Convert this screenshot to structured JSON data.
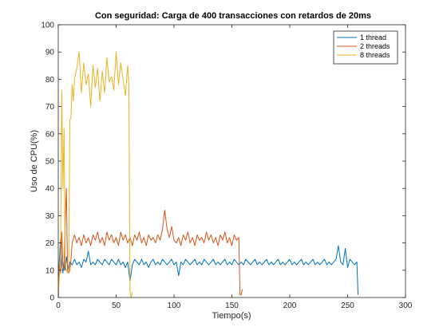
{
  "chart_data": {
    "type": "line",
    "title": "Con seguridad: Carga de 400 transacciones con retardos de 20ms",
    "xlabel": "Tiempo(s)",
    "ylabel": "Uso de CPU(%)",
    "xlim": [
      0,
      300
    ],
    "ylim": [
      0,
      100
    ],
    "xticks": [
      0,
      50,
      100,
      150,
      200,
      250,
      300
    ],
    "yticks": [
      0,
      10,
      20,
      30,
      40,
      50,
      60,
      70,
      80,
      90,
      100
    ],
    "grid": false,
    "legend_position": "top-right",
    "series": [
      {
        "name": "1 thread",
        "color": "#0072BD",
        "points": [
          [
            0,
            8
          ],
          [
            1,
            14
          ],
          [
            2,
            22
          ],
          [
            3,
            12
          ],
          [
            4,
            9
          ],
          [
            5,
            13
          ],
          [
            6,
            10
          ],
          [
            7,
            15
          ],
          [
            8,
            12
          ],
          [
            9,
            10
          ],
          [
            10,
            13
          ],
          [
            12,
            12
          ],
          [
            14,
            14
          ],
          [
            16,
            12
          ],
          [
            18,
            13
          ],
          [
            20,
            11
          ],
          [
            22,
            14
          ],
          [
            24,
            13
          ],
          [
            26,
            17
          ],
          [
            28,
            12
          ],
          [
            30,
            13
          ],
          [
            32,
            12
          ],
          [
            34,
            14
          ],
          [
            36,
            13
          ],
          [
            38,
            12
          ],
          [
            40,
            14
          ],
          [
            42,
            13
          ],
          [
            44,
            12
          ],
          [
            46,
            14
          ],
          [
            48,
            13
          ],
          [
            50,
            12
          ],
          [
            52,
            14
          ],
          [
            54,
            12
          ],
          [
            56,
            13
          ],
          [
            58,
            11
          ],
          [
            60,
            13
          ],
          [
            62,
            6
          ],
          [
            64,
            12
          ],
          [
            66,
            14
          ],
          [
            68,
            13
          ],
          [
            70,
            12
          ],
          [
            72,
            14
          ],
          [
            74,
            12
          ],
          [
            76,
            13
          ],
          [
            78,
            11
          ],
          [
            80,
            13
          ],
          [
            82,
            14
          ],
          [
            84,
            12
          ],
          [
            86,
            13
          ],
          [
            88,
            12
          ],
          [
            90,
            14
          ],
          [
            92,
            13
          ],
          [
            94,
            12
          ],
          [
            96,
            13
          ],
          [
            98,
            14
          ],
          [
            100,
            12
          ],
          [
            102,
            13
          ],
          [
            104,
            8
          ],
          [
            106,
            13
          ],
          [
            108,
            12
          ],
          [
            110,
            14
          ],
          [
            112,
            13
          ],
          [
            114,
            12
          ],
          [
            116,
            13
          ],
          [
            118,
            14
          ],
          [
            120,
            12
          ],
          [
            122,
            13
          ],
          [
            124,
            12
          ],
          [
            126,
            14
          ],
          [
            128,
            13
          ],
          [
            130,
            12
          ],
          [
            132,
            13
          ],
          [
            134,
            14
          ],
          [
            136,
            12
          ],
          [
            138,
            13
          ],
          [
            140,
            12
          ],
          [
            142,
            13
          ],
          [
            144,
            14
          ],
          [
            146,
            12
          ],
          [
            148,
            13
          ],
          [
            150,
            12
          ],
          [
            152,
            14
          ],
          [
            154,
            13
          ],
          [
            156,
            12
          ],
          [
            158,
            13
          ],
          [
            160,
            12
          ],
          [
            162,
            14
          ],
          [
            164,
            13
          ],
          [
            166,
            12
          ],
          [
            168,
            13
          ],
          [
            170,
            14
          ],
          [
            172,
            12
          ],
          [
            174,
            13
          ],
          [
            176,
            12
          ],
          [
            178,
            13
          ],
          [
            180,
            14
          ],
          [
            182,
            12
          ],
          [
            184,
            13
          ],
          [
            186,
            12
          ],
          [
            188,
            13
          ],
          [
            190,
            14
          ],
          [
            192,
            12
          ],
          [
            194,
            13
          ],
          [
            196,
            12
          ],
          [
            198,
            13
          ],
          [
            200,
            14
          ],
          [
            202,
            12
          ],
          [
            204,
            13
          ],
          [
            206,
            12
          ],
          [
            208,
            13
          ],
          [
            210,
            14
          ],
          [
            212,
            12
          ],
          [
            214,
            13
          ],
          [
            216,
            12
          ],
          [
            218,
            13
          ],
          [
            220,
            14
          ],
          [
            222,
            12
          ],
          [
            224,
            13
          ],
          [
            226,
            12
          ],
          [
            228,
            13
          ],
          [
            230,
            14
          ],
          [
            232,
            12
          ],
          [
            234,
            13
          ],
          [
            236,
            12
          ],
          [
            238,
            13
          ],
          [
            240,
            14
          ],
          [
            242,
            19
          ],
          [
            244,
            13
          ],
          [
            246,
            12
          ],
          [
            248,
            18
          ],
          [
            250,
            11
          ],
          [
            252,
            14
          ],
          [
            254,
            13
          ],
          [
            256,
            12
          ],
          [
            258,
            13
          ],
          [
            259,
            1
          ]
        ]
      },
      {
        "name": "2 threads",
        "color": "#D95319",
        "points": [
          [
            0,
            0
          ],
          [
            1,
            12
          ],
          [
            2,
            9
          ],
          [
            3,
            24
          ],
          [
            4,
            12
          ],
          [
            5,
            10
          ],
          [
            6,
            28
          ],
          [
            7,
            40
          ],
          [
            8,
            10
          ],
          [
            9,
            9
          ],
          [
            10,
            10
          ],
          [
            11,
            14
          ],
          [
            12,
            20
          ],
          [
            14,
            23
          ],
          [
            16,
            20
          ],
          [
            18,
            22
          ],
          [
            20,
            19
          ],
          [
            22,
            23
          ],
          [
            24,
            20
          ],
          [
            26,
            22
          ],
          [
            28,
            19
          ],
          [
            30,
            23
          ],
          [
            32,
            21
          ],
          [
            34,
            24
          ],
          [
            36,
            20
          ],
          [
            38,
            22
          ],
          [
            40,
            19
          ],
          [
            42,
            24
          ],
          [
            44,
            21
          ],
          [
            46,
            23
          ],
          [
            48,
            20
          ],
          [
            50,
            22
          ],
          [
            52,
            19
          ],
          [
            54,
            24
          ],
          [
            56,
            21
          ],
          [
            58,
            23
          ],
          [
            60,
            20
          ],
          [
            62,
            22
          ],
          [
            64,
            19
          ],
          [
            66,
            23
          ],
          [
            68,
            21
          ],
          [
            70,
            24
          ],
          [
            72,
            20
          ],
          [
            74,
            22
          ],
          [
            76,
            19
          ],
          [
            78,
            23
          ],
          [
            80,
            21
          ],
          [
            82,
            22
          ],
          [
            84,
            20
          ],
          [
            86,
            23
          ],
          [
            88,
            21
          ],
          [
            90,
            25
          ],
          [
            92,
            32
          ],
          [
            94,
            25
          ],
          [
            96,
            22
          ],
          [
            98,
            26
          ],
          [
            100,
            21
          ],
          [
            102,
            20
          ],
          [
            104,
            22
          ],
          [
            106,
            19
          ],
          [
            108,
            23
          ],
          [
            110,
            21
          ],
          [
            112,
            24
          ],
          [
            114,
            20
          ],
          [
            116,
            22
          ],
          [
            118,
            19
          ],
          [
            120,
            23
          ],
          [
            122,
            21
          ],
          [
            124,
            22
          ],
          [
            126,
            20
          ],
          [
            128,
            24
          ],
          [
            130,
            21
          ],
          [
            132,
            23
          ],
          [
            134,
            20
          ],
          [
            136,
            22
          ],
          [
            138,
            19
          ],
          [
            140,
            23
          ],
          [
            142,
            21
          ],
          [
            144,
            24
          ],
          [
            146,
            20
          ],
          [
            148,
            22
          ],
          [
            150,
            19
          ],
          [
            152,
            23
          ],
          [
            154,
            21
          ],
          [
            156,
            22
          ],
          [
            157,
            1
          ],
          [
            158,
            1
          ],
          [
            159,
            3
          ]
        ]
      },
      {
        "name": "8 threads",
        "color": "#EDB120",
        "points": [
          [
            0,
            0
          ],
          [
            1,
            8
          ],
          [
            2,
            15
          ],
          [
            3,
            76
          ],
          [
            4,
            40
          ],
          [
            5,
            62
          ],
          [
            6,
            12
          ],
          [
            7,
            10
          ],
          [
            8,
            9
          ],
          [
            9,
            10
          ],
          [
            10,
            65
          ],
          [
            11,
            66
          ],
          [
            12,
            78
          ],
          [
            13,
            72
          ],
          [
            14,
            80
          ],
          [
            16,
            84
          ],
          [
            18,
            90
          ],
          [
            20,
            75
          ],
          [
            22,
            86
          ],
          [
            24,
            78
          ],
          [
            26,
            82
          ],
          [
            28,
            70
          ],
          [
            30,
            85
          ],
          [
            32,
            77
          ],
          [
            34,
            84
          ],
          [
            36,
            72
          ],
          [
            38,
            83
          ],
          [
            40,
            75
          ],
          [
            42,
            88
          ],
          [
            44,
            79
          ],
          [
            46,
            81
          ],
          [
            48,
            76
          ],
          [
            50,
            90
          ],
          [
            52,
            78
          ],
          [
            54,
            86
          ],
          [
            56,
            80
          ],
          [
            58,
            74
          ],
          [
            60,
            85
          ],
          [
            61,
            78
          ],
          [
            62,
            2
          ],
          [
            63,
            0
          ],
          [
            64,
            2
          ]
        ]
      }
    ]
  }
}
